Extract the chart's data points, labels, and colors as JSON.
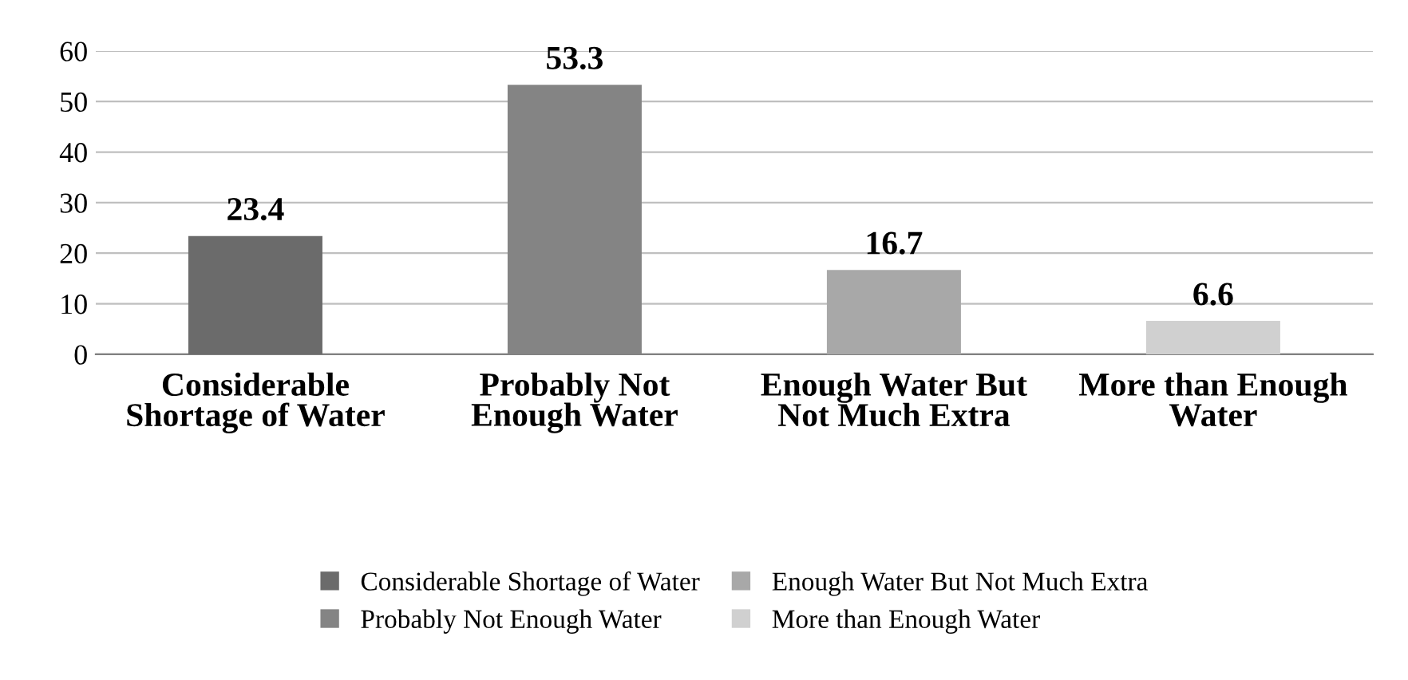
{
  "chart_data": {
    "type": "bar",
    "categories": [
      "Considerable Shortage of Water",
      "Probably Not Enough Water",
      "Enough Water But Not Much Extra",
      "More than Enough Water"
    ],
    "series": [
      {
        "name": "Considerable Shortage of Water",
        "color": "#6b6b6b",
        "values": [
          23.4,
          null,
          null,
          null
        ]
      },
      {
        "name": "Probably Not Enough Water",
        "color": "#848484",
        "values": [
          null,
          53.3,
          null,
          null
        ]
      },
      {
        "name": "Enough Water But Not Much Extra",
        "color": "#a8a8a8",
        "values": [
          null,
          null,
          16.7,
          null
        ]
      },
      {
        "name": "More than Enough Water",
        "color": "#d0d0d0",
        "values": [
          null,
          null,
          null,
          6.6
        ]
      }
    ],
    "ylim": [
      0,
      60
    ],
    "yticks": [
      0,
      10,
      20,
      30,
      40,
      50,
      60
    ],
    "grid": "y",
    "data_labels": true,
    "legend": "bottom"
  }
}
